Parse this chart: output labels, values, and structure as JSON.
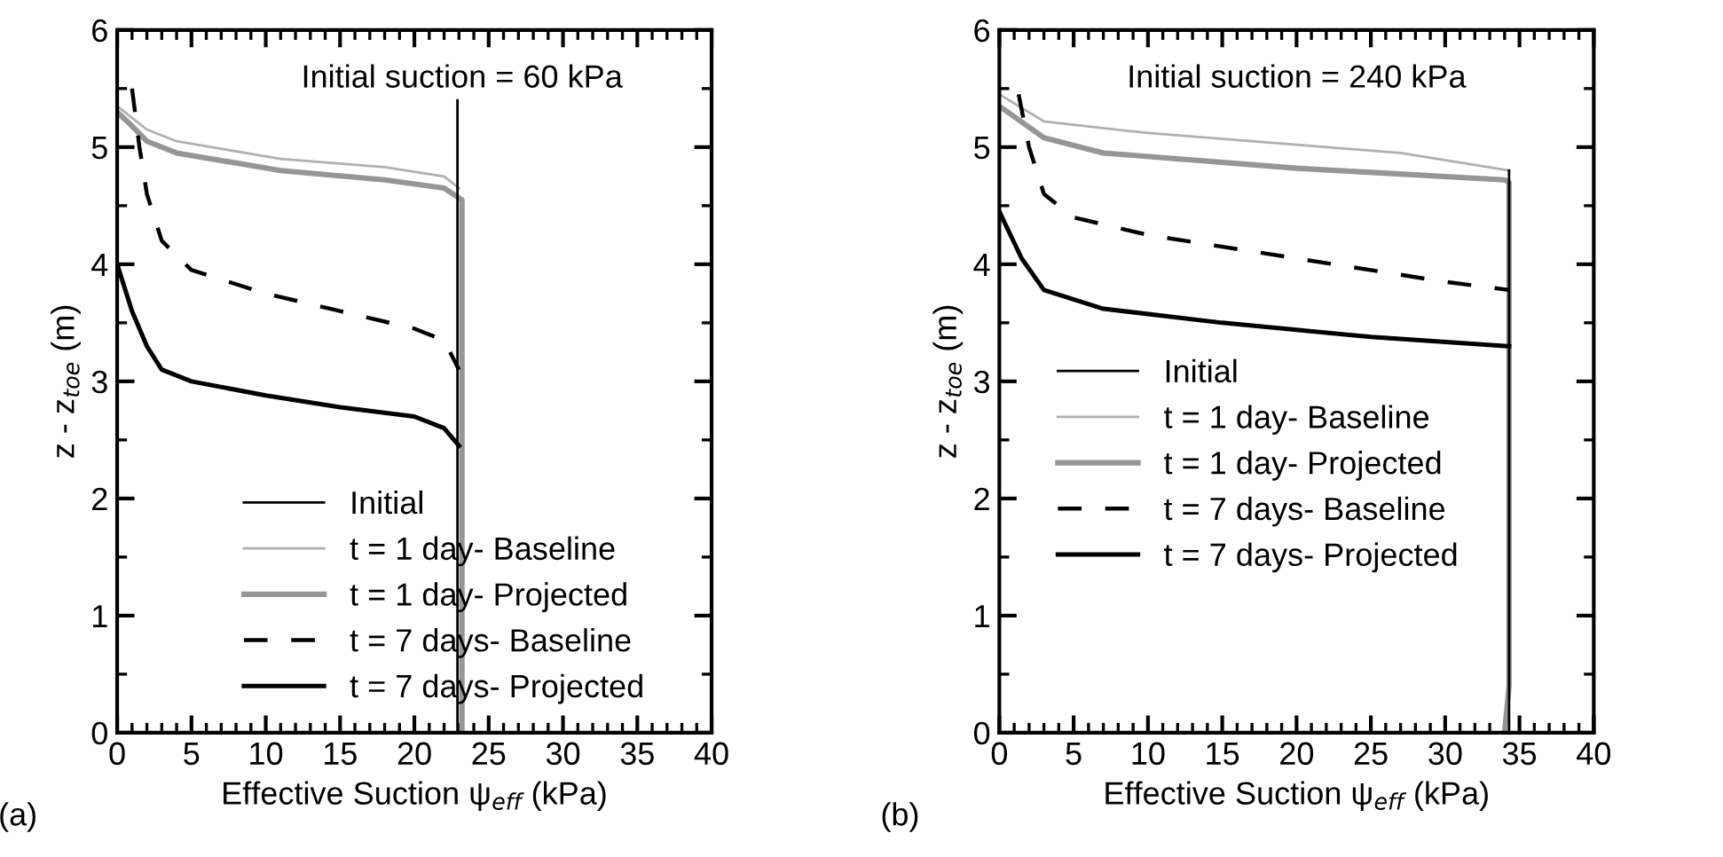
{
  "chart_data": [
    {
      "type": "line",
      "xlabel": "Effective Suction ψ$_{eff}$ (kPa)",
      "ylabel": "z - z$_{toe}$ (m)",
      "annotations": [
        "(a)",
        "Initial suction = 60 kPa"
      ],
      "xlim": [
        0,
        40
      ],
      "ylim": [
        0,
        6
      ],
      "xticks": [
        0,
        5,
        10,
        15,
        20,
        25,
        30,
        35,
        40
      ],
      "yticks": [
        0,
        1,
        2,
        3,
        4,
        5,
        6
      ],
      "grid": false,
      "legend": "bottom",
      "marker": "none",
      "series": [
        {
          "name": "Initial",
          "color": "#000000",
          "line_style": "solid",
          "x": [
            22.9,
            22.9
          ],
          "values": [
            5.4,
            0
          ]
        },
        {
          "name": "t = 1 day- Baseline",
          "color": "#b0b0b0",
          "line_style": "solid",
          "x": [
            0,
            1,
            2,
            4,
            11,
            18,
            22,
            23
          ],
          "values": [
            5.35,
            5.25,
            5.15,
            5.05,
            4.9,
            4.83,
            4.75,
            4.65
          ]
        },
        {
          "name": "t = 1 day- Projected",
          "color": "#969696",
          "line_style": "solid",
          "x": [
            0,
            1,
            2,
            4,
            11,
            18,
            22,
            23.2,
            23.2
          ],
          "values": [
            5.3,
            5.18,
            5.05,
            4.95,
            4.8,
            4.72,
            4.65,
            4.55,
            0
          ]
        },
        {
          "name": "t = 7 days- Baseline",
          "color": "#000000",
          "line_style": "dashed",
          "x": [
            1.0,
            1.5,
            2,
            3,
            5,
            10,
            15,
            20,
            22,
            23
          ],
          "values": [
            5.5,
            5.0,
            4.6,
            4.2,
            3.95,
            3.75,
            3.6,
            3.45,
            3.35,
            3.1
          ]
        },
        {
          "name": "t = 7 days- Projected",
          "color": "#000000",
          "line_style": "solid",
          "x": [
            0,
            1,
            2,
            3,
            5,
            10,
            15,
            20,
            22,
            23
          ],
          "values": [
            4.0,
            3.6,
            3.3,
            3.1,
            3.0,
            2.88,
            2.78,
            2.7,
            2.6,
            2.45
          ]
        }
      ]
    },
    {
      "type": "line",
      "xlabel": "Effective Suction ψ$_{eff}$ (kPa)",
      "ylabel": "z - z$_{toe}$ (m)",
      "annotations": [
        "(b)",
        "Initial suction = 240 kPa"
      ],
      "xlim": [
        0,
        40
      ],
      "ylim": [
        0,
        6
      ],
      "xticks": [
        0,
        5,
        10,
        15,
        20,
        25,
        30,
        35,
        40
      ],
      "yticks": [
        0,
        1,
        2,
        3,
        4,
        5,
        6
      ],
      "grid": false,
      "legend": "center left",
      "marker": "none",
      "series": [
        {
          "name": "Initial",
          "color": "#000000",
          "line_style": "solid",
          "x": [
            34.3,
            34.3
          ],
          "values": [
            4.8,
            0
          ]
        },
        {
          "name": "t = 1 day- Baseline",
          "color": "#b0b0b0",
          "line_style": "solid",
          "x": [
            0,
            3,
            10,
            20,
            27,
            34.3
          ],
          "values": [
            5.45,
            5.22,
            5.12,
            5.02,
            4.95,
            4.8
          ]
        },
        {
          "name": "t = 1 day- Projected",
          "color": "#969696",
          "line_style": "solid",
          "x": [
            0,
            3,
            7,
            20,
            34,
            34.3,
            34.3,
            34.0
          ],
          "values": [
            5.35,
            5.08,
            4.95,
            4.82,
            4.72,
            4.7,
            0.4,
            0
          ]
        },
        {
          "name": "t = 7 days- Baseline",
          "color": "#000000",
          "line_style": "dashed",
          "x": [
            1.3,
            2,
            3,
            5,
            10,
            20,
            30,
            34.3
          ],
          "values": [
            5.45,
            5.0,
            4.6,
            4.4,
            4.25,
            4.05,
            3.85,
            3.78
          ]
        },
        {
          "name": "t = 7 days- Projected",
          "color": "#000000",
          "line_style": "solid",
          "x": [
            0,
            1.5,
            3,
            7,
            15,
            25,
            34.3
          ],
          "values": [
            4.45,
            4.05,
            3.78,
            3.62,
            3.5,
            3.38,
            3.3
          ]
        }
      ]
    }
  ]
}
